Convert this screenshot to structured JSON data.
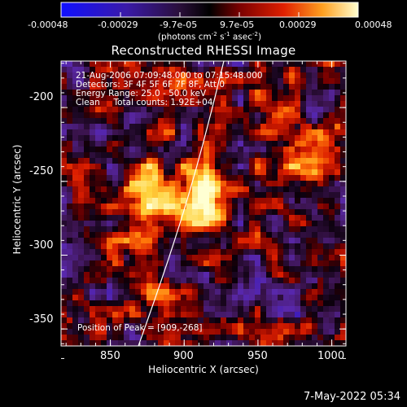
{
  "colorbar": {
    "tick_labels": [
      "-0.00048",
      "-0.00029",
      "-9.7e-05",
      "9.7e-05",
      "0.00029",
      "0.00048"
    ],
    "units_text": "(photons cm",
    "units_exp1": "-2",
    "units_mid": " s",
    "units_exp2": "-1",
    "units_mid2": " asec",
    "units_exp3": "-2",
    "units_end": ")"
  },
  "title": "Reconstructed RHESSI Image",
  "info": {
    "line1": "21-Aug-2006 07:09:48.000 to 07:15:48.000",
    "line2": "Detectors: 3F 4F 5F 6F 7F 8F, Att 0",
    "line3": "Energy Range: 25.0 - 50.0 keV",
    "line4": "Clean     Total counts: 1.92E+04"
  },
  "peak_text": "Position of Peak = [909,-268]",
  "axes": {
    "xlabel": "Heliocentric X (arcsec)",
    "ylabel": "Heliocentric Y (arcsec)",
    "xticks": [
      "850",
      "900",
      "950",
      "1000"
    ],
    "yticks": [
      "-200",
      "-250",
      "-300",
      "-350"
    ]
  },
  "timestamp": "7-May-2022 05:34",
  "colors": {
    "background": "#000000",
    "frame": "#ffffff",
    "limb": "#ffffff"
  }
}
